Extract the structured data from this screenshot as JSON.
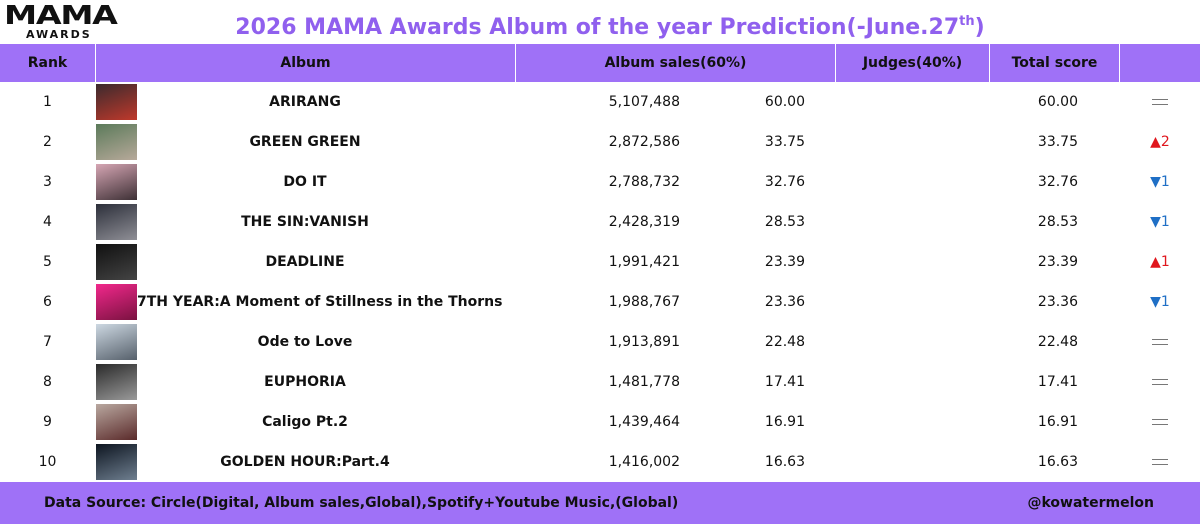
{
  "logo": {
    "main": "MAMA",
    "sub": "AWARDS"
  },
  "title": {
    "text": "2026 MAMA Awards Album of the year Prediction(-June.27",
    "sup": "th",
    "tail": ")"
  },
  "header": {
    "rank": "Rank",
    "album": "Album",
    "sales": "Album sales(60%)",
    "judges": "Judges(40%)",
    "total": "Total score"
  },
  "colors": {
    "accent": "#9f71f7",
    "title": "#9060ee",
    "up": "#e0161d",
    "down": "#1f6fc6"
  },
  "chart_data": {
    "type": "table",
    "columns": [
      "Rank",
      "Album",
      "Album sales(60%)",
      "Judges(40%)",
      "Total score"
    ],
    "rows": [
      {
        "rank": "1",
        "album": "ARIRANG",
        "sales": "5,107,488",
        "sales_score": "60.00",
        "judges": "",
        "total": "60.00",
        "change": "same",
        "change_value": "",
        "thumb": [
          "#3b2a2e",
          "#c0392b"
        ]
      },
      {
        "rank": "2",
        "album": "GREEN GREEN",
        "sales": "2,872,586",
        "sales_score": "33.75",
        "judges": "",
        "total": "33.75",
        "change": "up",
        "change_value": "2",
        "thumb": [
          "#5b7a5a",
          "#b7a99a"
        ]
      },
      {
        "rank": "3",
        "album": "DO IT",
        "sales": "2,788,732",
        "sales_score": "32.76",
        "judges": "",
        "total": "32.76",
        "change": "down",
        "change_value": "1",
        "thumb": [
          "#d6a6b4",
          "#3d3035"
        ]
      },
      {
        "rank": "4",
        "album": "THE SIN:VANISH",
        "sales": "2,428,319",
        "sales_score": "28.53",
        "judges": "",
        "total": "28.53",
        "change": "down",
        "change_value": "1",
        "thumb": [
          "#2c2f3a",
          "#8f8f96"
        ]
      },
      {
        "rank": "5",
        "album": "DEADLINE",
        "sales": "1,991,421",
        "sales_score": "23.39",
        "judges": "",
        "total": "23.39",
        "change": "up",
        "change_value": "1",
        "thumb": [
          "#101010",
          "#444444"
        ]
      },
      {
        "rank": "6",
        "album": "7TH YEAR:A Moment of Stillness in the Thorns",
        "sales": "1,988,767",
        "sales_score": "23.36",
        "judges": "",
        "total": "23.36",
        "change": "down",
        "change_value": "1",
        "thumb": [
          "#f2288c",
          "#7a1240"
        ]
      },
      {
        "rank": "7",
        "album": "Ode to Love",
        "sales": "1,913,891",
        "sales_score": "22.48",
        "judges": "",
        "total": "22.48",
        "change": "same",
        "change_value": "",
        "thumb": [
          "#cdd8e2",
          "#56606b"
        ]
      },
      {
        "rank": "8",
        "album": "EUPHORIA",
        "sales": "1,481,778",
        "sales_score": "17.41",
        "judges": "",
        "total": "17.41",
        "change": "same",
        "change_value": "",
        "thumb": [
          "#2a2a2a",
          "#9a9a9a"
        ]
      },
      {
        "rank": "9",
        "album": "Caligo Pt.2",
        "sales": "1,439,464",
        "sales_score": "16.91",
        "judges": "",
        "total": "16.91",
        "change": "same",
        "change_value": "",
        "thumb": [
          "#b9a8a0",
          "#5a2a2a"
        ]
      },
      {
        "rank": "10",
        "album": "GOLDEN HOUR:Part.4",
        "sales": "1,416,002",
        "sales_score": "16.63",
        "judges": "",
        "total": "16.63",
        "change": "same",
        "change_value": "",
        "thumb": [
          "#0d1520",
          "#6f7f90"
        ]
      }
    ]
  },
  "footer": {
    "source": "Data Source: Circle(Digital, Album sales,Global),Spotify+Youtube Music,(Global)",
    "handle": "@kowatermelon"
  }
}
